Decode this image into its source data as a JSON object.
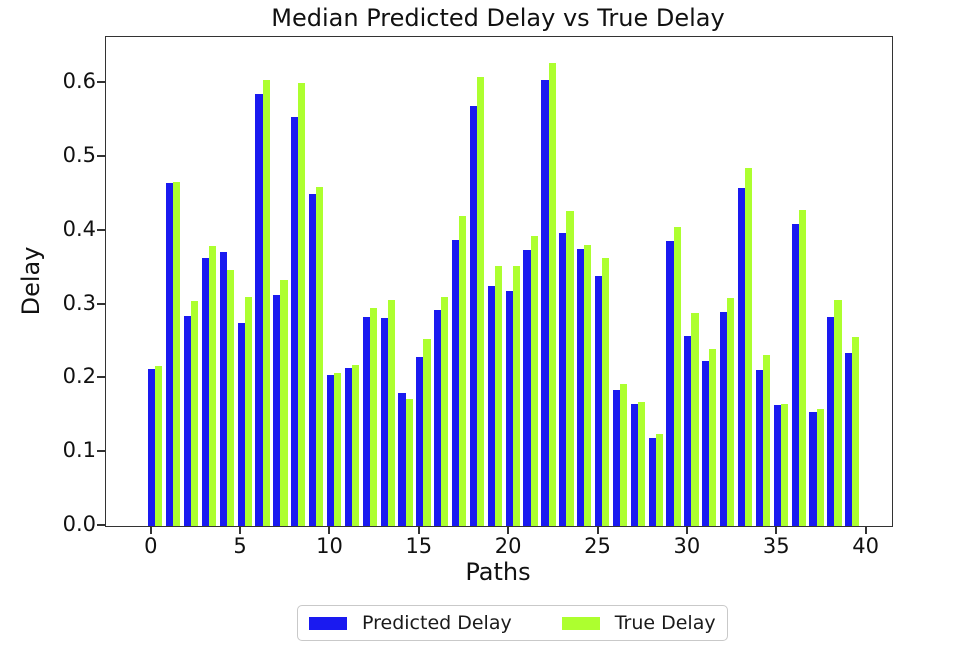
{
  "figure": {
    "background": "#ffffff"
  },
  "chart_data": {
    "type": "bar",
    "title": "Median Predicted Delay vs True Delay",
    "xlabel": "Paths",
    "ylabel": "Delay",
    "grid": false,
    "legend_position": "bottom center, outside plot",
    "bar_width": 0.4,
    "xlim": [
      -2.56,
      41.42
    ],
    "ylim": [
      0,
      0.663
    ],
    "xticks": [
      0,
      5,
      10,
      15,
      20,
      25,
      30,
      35,
      40
    ],
    "ytick_labels": [
      "0.0",
      "0.1",
      "0.2",
      "0.3",
      "0.4",
      "0.5",
      "0.6"
    ],
    "ytick_values": [
      0.0,
      0.1,
      0.2,
      0.3,
      0.4,
      0.5,
      0.6
    ],
    "x": [
      0,
      1,
      2,
      3,
      4,
      5,
      6,
      7,
      8,
      9,
      10,
      11,
      12,
      13,
      14,
      15,
      16,
      17,
      18,
      19,
      20,
      21,
      22,
      23,
      24,
      25,
      26,
      27,
      28,
      29,
      30,
      31,
      32,
      33,
      34,
      35,
      36,
      37,
      38,
      39
    ],
    "series": [
      {
        "name": "Predicted Delay",
        "color": "#1a1af0",
        "values": [
          0.213,
          0.465,
          0.285,
          0.364,
          0.371,
          0.275,
          0.586,
          0.313,
          0.554,
          0.45,
          0.205,
          0.214,
          0.283,
          0.282,
          0.181,
          0.229,
          0.293,
          0.388,
          0.57,
          0.326,
          0.318,
          0.374,
          0.605,
          0.397,
          0.376,
          0.339,
          0.185,
          0.166,
          0.119,
          0.387,
          0.257,
          0.224,
          0.29,
          0.458,
          0.212,
          0.164,
          0.41,
          0.155,
          0.284,
          0.234
        ]
      },
      {
        "name": "True Delay",
        "color": "#adff2f",
        "values": [
          0.217,
          0.467,
          0.305,
          0.38,
          0.347,
          0.31,
          0.605,
          0.334,
          0.6,
          0.459,
          0.207,
          0.218,
          0.296,
          0.307,
          0.172,
          0.253,
          0.31,
          0.421,
          0.609,
          0.352,
          0.352,
          0.393,
          0.628,
          0.427,
          0.381,
          0.364,
          0.193,
          0.168,
          0.125,
          0.406,
          0.289,
          0.24,
          0.309,
          0.485,
          0.232,
          0.166,
          0.428,
          0.158,
          0.306,
          0.256
        ]
      }
    ]
  },
  "legend": {
    "items": [
      {
        "label": "Predicted Delay",
        "color": "#1a1af0"
      },
      {
        "label": "True Delay",
        "color": "#adff2f"
      }
    ]
  }
}
